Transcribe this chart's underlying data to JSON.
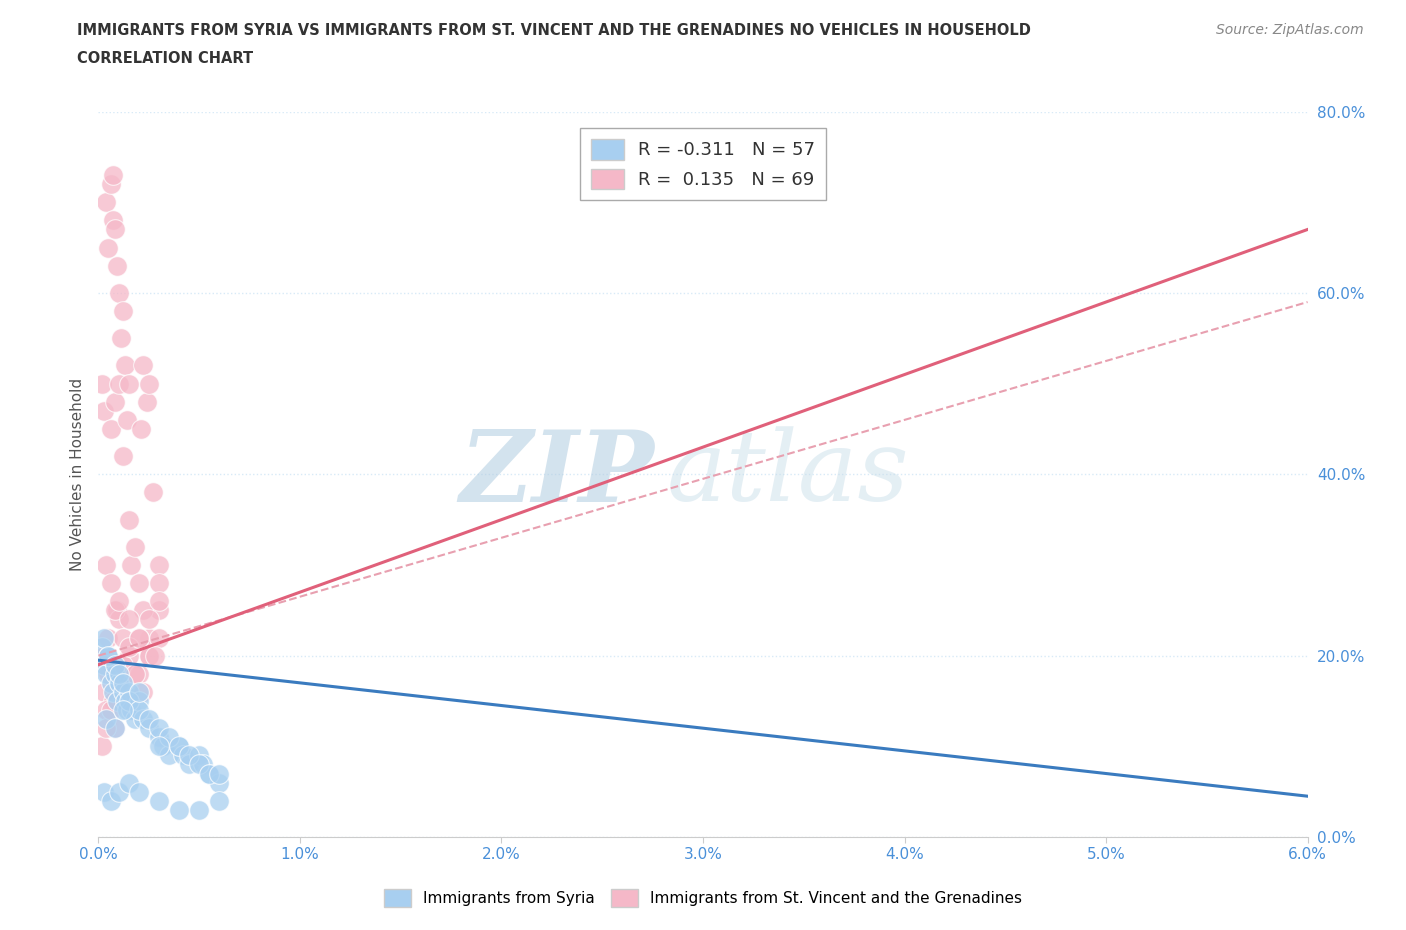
{
  "title_line1": "IMMIGRANTS FROM SYRIA VS IMMIGRANTS FROM ST. VINCENT AND THE GRENADINES NO VEHICLES IN HOUSEHOLD",
  "title_line2": "CORRELATION CHART",
  "source_text": "Source: ZipAtlas.com",
  "ylabel": "No Vehicles in Household",
  "xlim": [
    0.0,
    0.06
  ],
  "ylim": [
    0.0,
    0.8
  ],
  "xticks": [
    0.0,
    0.01,
    0.02,
    0.03,
    0.04,
    0.05,
    0.06
  ],
  "xtick_labels": [
    "0.0%",
    "1.0%",
    "2.0%",
    "3.0%",
    "4.0%",
    "5.0%",
    "6.0%"
  ],
  "yticks": [
    0.0,
    0.2,
    0.4,
    0.6,
    0.8
  ],
  "ytick_labels": [
    "0.0%",
    "20.0%",
    "40.0%",
    "60.0%",
    "80.0%"
  ],
  "syria_R": -0.311,
  "syria_N": 57,
  "svg_R": 0.135,
  "svg_N": 69,
  "syria_color": "#a8cff0",
  "svg_color": "#f5b8c8",
  "syria_line_color": "#3a7bbf",
  "svg_line_color": "#e0607a",
  "svg_line_dash_color": "#e8a0b0",
  "background_color": "#ffffff",
  "grid_color": "#d8eaf7",
  "watermark_zip_color": "#b8d4ec",
  "watermark_atlas_color": "#c8dce8",
  "legend_syria_label": "Immigrants from Syria",
  "legend_svg_label": "Immigrants from St. Vincent and the Grenadines",
  "syria_line_intercept": 0.195,
  "syria_line_slope": -2.5,
  "svg_line_intercept": 0.19,
  "svg_line_slope": 8.0,
  "svg_dash_intercept": 0.2,
  "svg_dash_slope": 6.5,
  "syria_x": [
    0.0002,
    0.0003,
    0.0004,
    0.0005,
    0.0006,
    0.0007,
    0.0008,
    0.0009,
    0.001,
    0.0012,
    0.0013,
    0.0014,
    0.0015,
    0.0016,
    0.0018,
    0.002,
    0.0022,
    0.0025,
    0.003,
    0.0032,
    0.0035,
    0.004,
    0.0042,
    0.0045,
    0.005,
    0.0052,
    0.0055,
    0.006,
    0.0003,
    0.0005,
    0.0008,
    0.001,
    0.0012,
    0.0015,
    0.002,
    0.0025,
    0.003,
    0.0035,
    0.004,
    0.0045,
    0.005,
    0.0055,
    0.006,
    0.0003,
    0.0006,
    0.001,
    0.0015,
    0.002,
    0.003,
    0.004,
    0.005,
    0.006,
    0.0004,
    0.0008,
    0.0012,
    0.002,
    0.003
  ],
  "syria_y": [
    0.21,
    0.19,
    0.18,
    0.2,
    0.17,
    0.16,
    0.18,
    0.15,
    0.17,
    0.16,
    0.15,
    0.14,
    0.16,
    0.14,
    0.13,
    0.15,
    0.13,
    0.12,
    0.11,
    0.1,
    0.09,
    0.1,
    0.09,
    0.08,
    0.09,
    0.08,
    0.07,
    0.06,
    0.22,
    0.2,
    0.19,
    0.18,
    0.17,
    0.15,
    0.14,
    0.13,
    0.12,
    0.11,
    0.1,
    0.09,
    0.08,
    0.07,
    0.07,
    0.05,
    0.04,
    0.05,
    0.06,
    0.05,
    0.04,
    0.03,
    0.03,
    0.04,
    0.13,
    0.12,
    0.14,
    0.16,
    0.1
  ],
  "svg_x": [
    0.0002,
    0.0003,
    0.0004,
    0.0005,
    0.0006,
    0.0006,
    0.0007,
    0.0007,
    0.0008,
    0.0008,
    0.0009,
    0.001,
    0.001,
    0.0011,
    0.0012,
    0.0012,
    0.0013,
    0.0014,
    0.0015,
    0.0015,
    0.0016,
    0.0018,
    0.002,
    0.0021,
    0.0022,
    0.0024,
    0.0025,
    0.0025,
    0.0027,
    0.003,
    0.003,
    0.0003,
    0.0005,
    0.0007,
    0.0009,
    0.001,
    0.0012,
    0.0015,
    0.0018,
    0.002,
    0.0022,
    0.0025,
    0.003,
    0.0003,
    0.0005,
    0.0007,
    0.001,
    0.0012,
    0.0015,
    0.002,
    0.0025,
    0.003,
    0.0004,
    0.0006,
    0.0008,
    0.001,
    0.0015,
    0.002,
    0.0025,
    0.003,
    0.0004,
    0.0008,
    0.0012,
    0.0018,
    0.0022,
    0.0028,
    0.0002,
    0.0004,
    0.0006
  ],
  "svg_y": [
    0.5,
    0.47,
    0.7,
    0.65,
    0.72,
    0.45,
    0.73,
    0.68,
    0.67,
    0.48,
    0.63,
    0.6,
    0.5,
    0.55,
    0.58,
    0.42,
    0.52,
    0.46,
    0.35,
    0.5,
    0.3,
    0.32,
    0.28,
    0.45,
    0.52,
    0.48,
    0.5,
    0.22,
    0.38,
    0.25,
    0.3,
    0.2,
    0.22,
    0.18,
    0.25,
    0.24,
    0.22,
    0.2,
    0.18,
    0.22,
    0.25,
    0.2,
    0.28,
    0.16,
    0.18,
    0.15,
    0.17,
    0.19,
    0.21,
    0.18,
    0.2,
    0.22,
    0.3,
    0.28,
    0.25,
    0.26,
    0.24,
    0.22,
    0.24,
    0.26,
    0.14,
    0.12,
    0.15,
    0.18,
    0.16,
    0.2,
    0.1,
    0.12,
    0.14
  ]
}
